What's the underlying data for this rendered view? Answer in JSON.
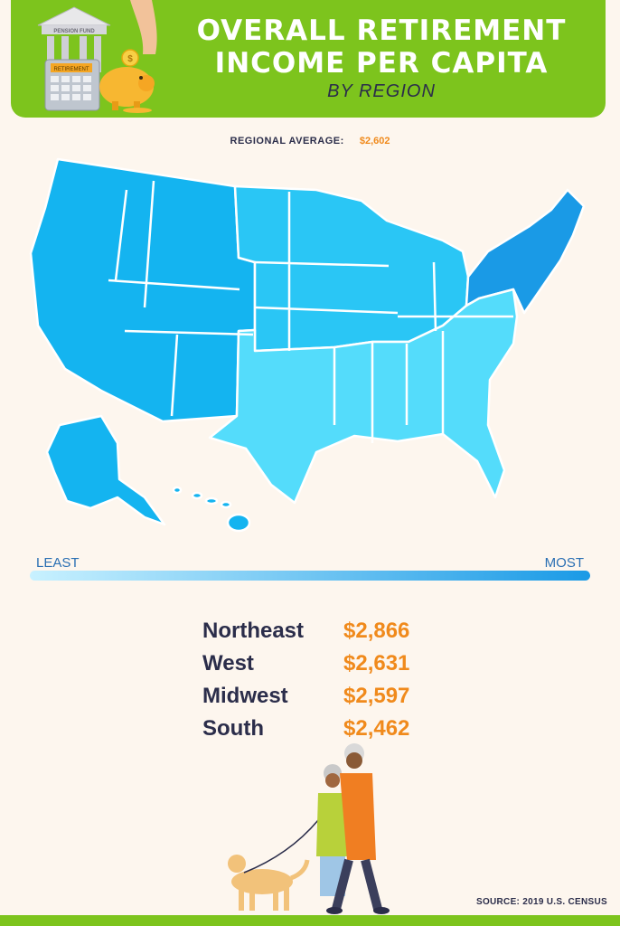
{
  "header": {
    "title": "Overall Retirement Income per Capita",
    "subtitle": "BY REGION",
    "illustration": {
      "building_sign": "PENSION FUND",
      "calculator_label": "RETIREMENT",
      "coin_symbol": "$"
    }
  },
  "average": {
    "label": "REGIONAL AVERAGE:",
    "value": "$2,602"
  },
  "legend": {
    "least": "LEAST",
    "most": "MOST",
    "colors": [
      "#c8f1ff",
      "#1a9ae6"
    ]
  },
  "regions": [
    {
      "name": "Northeast",
      "value": "$2,866",
      "color": "#1a9ae6"
    },
    {
      "name": "West",
      "value": "$2,631",
      "color": "#14b4f0"
    },
    {
      "name": "Midwest",
      "value": "$2,597",
      "color": "#2ac6f5"
    },
    {
      "name": "South",
      "value": "$2,462",
      "color": "#54dcfb"
    }
  ],
  "source": "SOURCE: 2019 U.S. CENSUS",
  "colors": {
    "header": "#7dc41d",
    "accent": "#f08a1c",
    "text": "#2b2d4a",
    "background": "#fdf6ee"
  }
}
